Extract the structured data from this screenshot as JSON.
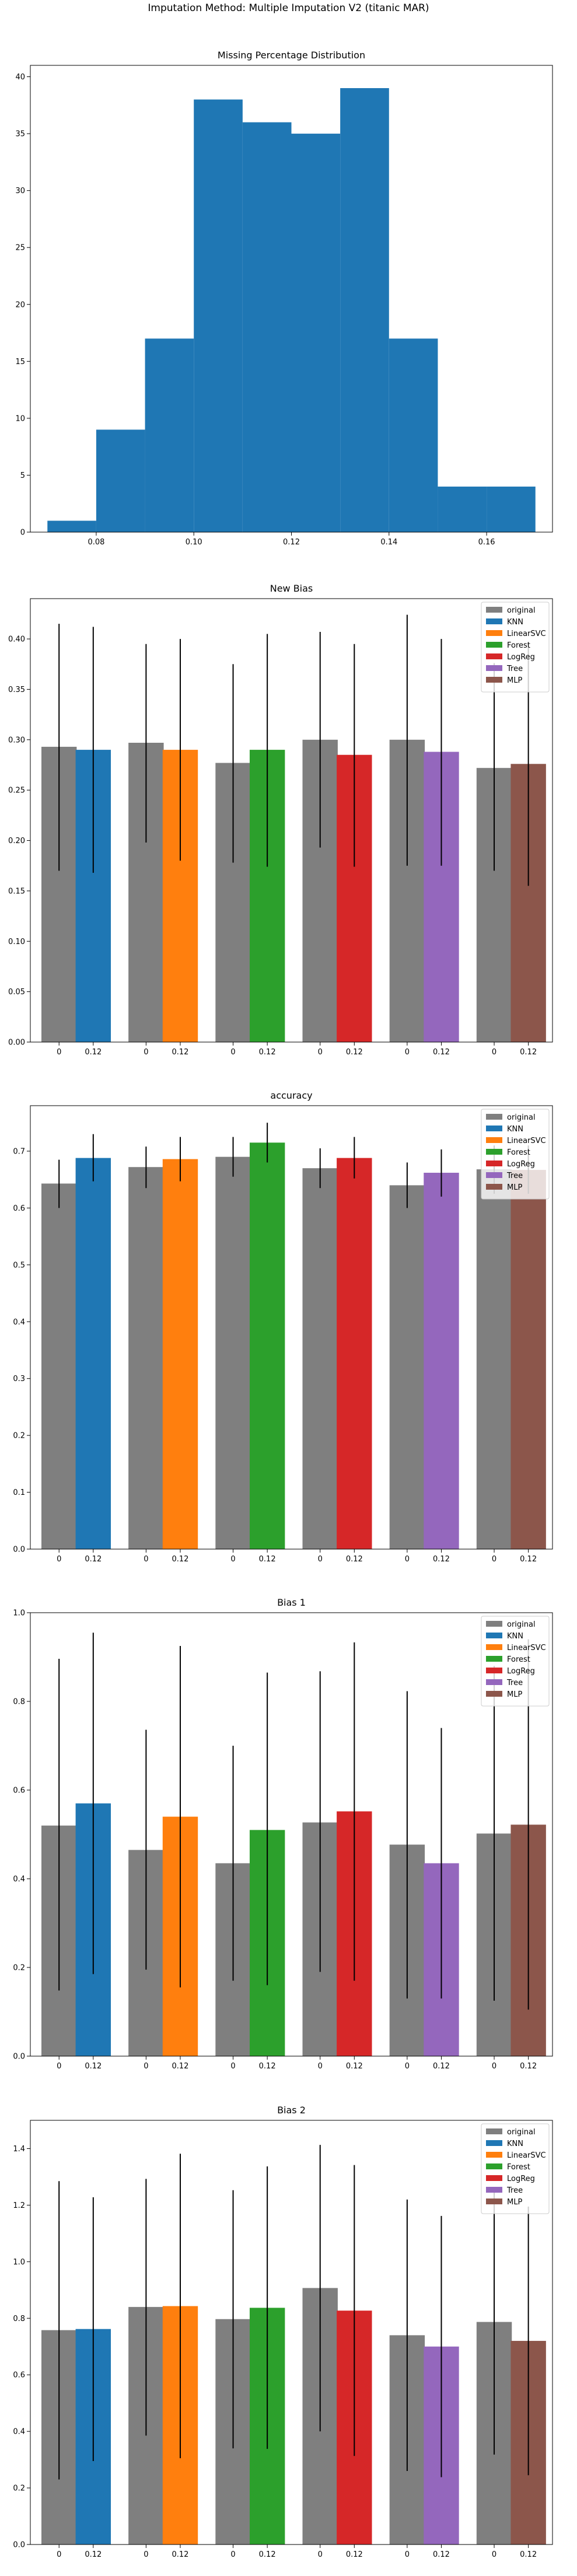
{
  "suptitle": "Imputation Method: Multiple Imputation V2 (titanic MAR)",
  "colors": {
    "original": "#7f7f7f",
    "KNN": "#1f77b4",
    "LinearSVC": "#ff7f0e",
    "Forest": "#2ca02c",
    "LogReg": "#d62728",
    "Tree": "#9467bd",
    "MLP": "#8c564b",
    "hist": "#1f77b4"
  },
  "chart_data": [
    {
      "type": "bar",
      "title": "Missing Percentage Distribution",
      "xlabel": "",
      "ylabel": "",
      "bin_edges": [
        0.07,
        0.08,
        0.09,
        0.1,
        0.11,
        0.12,
        0.13,
        0.14,
        0.15,
        0.16,
        0.17
      ],
      "values": [
        1,
        9,
        17,
        38,
        36,
        35,
        39,
        17,
        4,
        4
      ],
      "xlim": [
        0.0665,
        0.1735
      ],
      "ylim": [
        0,
        41
      ],
      "xticks": [
        "0.08",
        "0.10",
        "0.12",
        "0.14",
        "0.16"
      ],
      "yticks": [
        "0",
        "5",
        "10",
        "15",
        "20",
        "25",
        "30",
        "35",
        "40"
      ],
      "grid": false
    },
    {
      "type": "bar",
      "title": "New Bias",
      "xlabel": "",
      "ylabel": "",
      "ylim": [
        0,
        0.44
      ],
      "yticks": [
        "0.00",
        "0.05",
        "0.10",
        "0.15",
        "0.20",
        "0.25",
        "0.30",
        "0.35",
        "0.40"
      ],
      "tick_labels": [
        "0",
        "0.12"
      ],
      "legend": [
        "original",
        "KNN",
        "LinearSVC",
        "Forest",
        "LogReg",
        "Tree",
        "MLP"
      ],
      "legend_position": "top-right",
      "groups": [
        {
          "method": "KNN",
          "original": 0.293,
          "original_err": [
            0.17,
            0.415
          ],
          "imputed": 0.29,
          "imputed_err": [
            0.168,
            0.412
          ]
        },
        {
          "method": "LinearSVC",
          "original": 0.297,
          "original_err": [
            0.198,
            0.395
          ],
          "imputed": 0.29,
          "imputed_err": [
            0.18,
            0.4
          ]
        },
        {
          "method": "Forest",
          "original": 0.277,
          "original_err": [
            0.178,
            0.375
          ],
          "imputed": 0.29,
          "imputed_err": [
            0.174,
            0.405
          ]
        },
        {
          "method": "LogReg",
          "original": 0.3,
          "original_err": [
            0.193,
            0.407
          ],
          "imputed": 0.285,
          "imputed_err": [
            0.174,
            0.395
          ]
        },
        {
          "method": "Tree",
          "original": 0.3,
          "original_err": [
            0.175,
            0.424
          ],
          "imputed": 0.288,
          "imputed_err": [
            0.175,
            0.4
          ]
        },
        {
          "method": "MLP",
          "original": 0.272,
          "original_err": [
            0.17,
            0.376
          ],
          "imputed": 0.276,
          "imputed_err": [
            0.155,
            0.397
          ]
        }
      ]
    },
    {
      "type": "bar",
      "title": "accuracy",
      "xlabel": "",
      "ylabel": "",
      "ylim": [
        0,
        0.78
      ],
      "yticks": [
        "0.0",
        "0.1",
        "0.2",
        "0.3",
        "0.4",
        "0.5",
        "0.6",
        "0.7"
      ],
      "tick_labels": [
        "0",
        "0.12"
      ],
      "legend": [
        "original",
        "KNN",
        "LinearSVC",
        "Forest",
        "LogReg",
        "Tree",
        "MLP"
      ],
      "legend_position": "top-right",
      "groups": [
        {
          "method": "KNN",
          "original": 0.643,
          "original_err": [
            0.6,
            0.685
          ],
          "imputed": 0.688,
          "imputed_err": [
            0.647,
            0.73
          ]
        },
        {
          "method": "LinearSVC",
          "original": 0.672,
          "original_err": [
            0.635,
            0.708
          ],
          "imputed": 0.686,
          "imputed_err": [
            0.647,
            0.725
          ]
        },
        {
          "method": "Forest",
          "original": 0.69,
          "original_err": [
            0.655,
            0.725
          ],
          "imputed": 0.715,
          "imputed_err": [
            0.68,
            0.75
          ]
        },
        {
          "method": "LogReg",
          "original": 0.67,
          "original_err": [
            0.635,
            0.705
          ],
          "imputed": 0.688,
          "imputed_err": [
            0.652,
            0.725
          ]
        },
        {
          "method": "Tree",
          "original": 0.64,
          "original_err": [
            0.6,
            0.68
          ],
          "imputed": 0.662,
          "imputed_err": [
            0.62,
            0.703
          ]
        },
        {
          "method": "MLP",
          "original": 0.668,
          "original_err": [
            0.625,
            0.71
          ],
          "imputed": 0.667,
          "imputed_err": [
            0.625,
            0.71
          ]
        }
      ]
    },
    {
      "type": "bar",
      "title": "Bias 1",
      "xlabel": "",
      "ylabel": "",
      "ylim": [
        0,
        1.0
      ],
      "yticks": [
        "0.0",
        "0.2",
        "0.4",
        "0.6",
        "0.8",
        "1.0"
      ],
      "tick_labels": [
        "0",
        "0.12"
      ],
      "legend": [
        "original",
        "KNN",
        "LinearSVC",
        "Forest",
        "LogReg",
        "Tree",
        "MLP"
      ],
      "legend_position": "top-right",
      "groups": [
        {
          "method": "KNN",
          "original": 0.52,
          "original_err": [
            0.148,
            0.896
          ],
          "imputed": 0.57,
          "imputed_err": [
            0.185,
            0.955
          ]
        },
        {
          "method": "LinearSVC",
          "original": 0.465,
          "original_err": [
            0.195,
            0.736
          ],
          "imputed": 0.54,
          "imputed_err": [
            0.155,
            0.925
          ]
        },
        {
          "method": "Forest",
          "original": 0.435,
          "original_err": [
            0.17,
            0.7
          ],
          "imputed": 0.51,
          "imputed_err": [
            0.16,
            0.865
          ]
        },
        {
          "method": "LogReg",
          "original": 0.527,
          "original_err": [
            0.19,
            0.868
          ],
          "imputed": 0.552,
          "imputed_err": [
            0.17,
            0.933
          ]
        },
        {
          "method": "Tree",
          "original": 0.477,
          "original_err": [
            0.13,
            0.823
          ],
          "imputed": 0.435,
          "imputed_err": [
            0.13,
            0.74
          ]
        },
        {
          "method": "MLP",
          "original": 0.502,
          "original_err": [
            0.125,
            0.88
          ],
          "imputed": 0.522,
          "imputed_err": [
            0.105,
            0.94
          ]
        }
      ]
    },
    {
      "type": "bar",
      "title": "Bias 2",
      "xlabel": "",
      "ylabel": "",
      "ylim": [
        0,
        1.5
      ],
      "yticks": [
        "0.0",
        "0.2",
        "0.4",
        "0.6",
        "0.8",
        "1.0",
        "1.2",
        "1.4"
      ],
      "tick_labels": [
        "0",
        "0.12"
      ],
      "legend": [
        "original",
        "KNN",
        "LinearSVC",
        "Forest",
        "LogReg",
        "Tree",
        "MLP"
      ],
      "legend_position": "top-right",
      "groups": [
        {
          "method": "KNN",
          "original": 0.758,
          "original_err": [
            0.23,
            1.285
          ],
          "imputed": 0.762,
          "imputed_err": [
            0.295,
            1.228
          ]
        },
        {
          "method": "LinearSVC",
          "original": 0.84,
          "original_err": [
            0.385,
            1.293
          ],
          "imputed": 0.843,
          "imputed_err": [
            0.305,
            1.382
          ]
        },
        {
          "method": "Forest",
          "original": 0.797,
          "original_err": [
            0.34,
            1.253
          ],
          "imputed": 0.837,
          "imputed_err": [
            0.338,
            1.337
          ]
        },
        {
          "method": "LogReg",
          "original": 0.907,
          "original_err": [
            0.4,
            1.413
          ],
          "imputed": 0.827,
          "imputed_err": [
            0.313,
            1.342
          ]
        },
        {
          "method": "Tree",
          "original": 0.74,
          "original_err": [
            0.26,
            1.22
          ],
          "imputed": 0.7,
          "imputed_err": [
            0.238,
            1.162
          ]
        },
        {
          "method": "MLP",
          "original": 0.787,
          "original_err": [
            0.318,
            1.256
          ],
          "imputed": 0.72,
          "imputed_err": [
            0.245,
            1.195
          ]
        }
      ]
    }
  ]
}
